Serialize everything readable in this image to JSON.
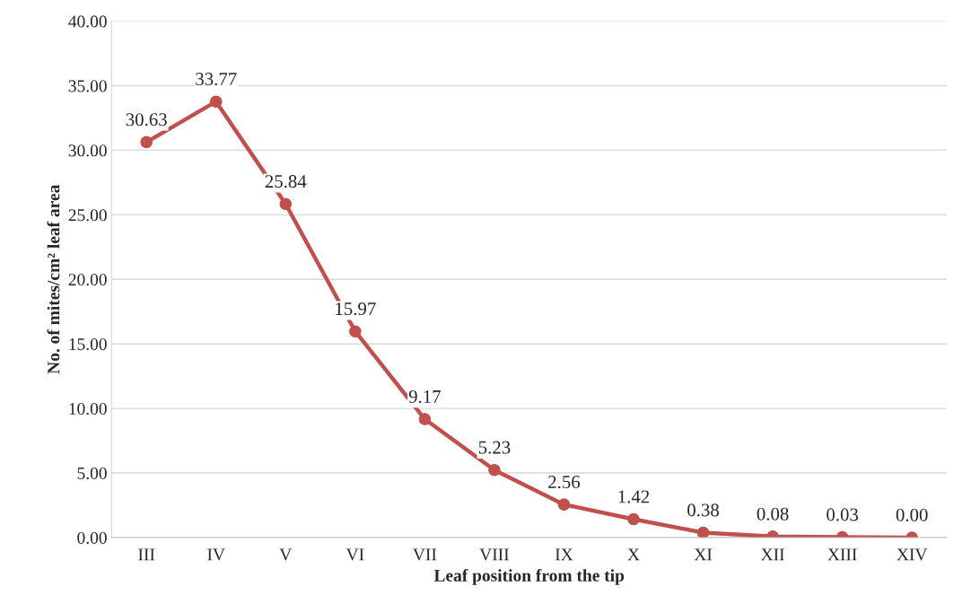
{
  "chart_data": {
    "type": "line",
    "xlabel": "Leaf position from the tip",
    "ylabel": "No. of mites/cm² leaf area",
    "categories": [
      "III",
      "IV",
      "V",
      "VI",
      "VII",
      "VIII",
      "IX",
      "X",
      "XI",
      "XII",
      "XIII",
      "XIV"
    ],
    "series": [
      {
        "color": "#c0504d",
        "values": [
          30.63,
          33.77,
          25.84,
          15.97,
          9.17,
          5.23,
          2.56,
          1.42,
          0.38,
          0.08,
          0.03,
          0.0
        ],
        "value_labels": [
          "30.63",
          "33.77",
          "25.84",
          "15.97",
          "9.17",
          "5.23",
          "2.56",
          "1.42",
          "0.38",
          "0.08",
          "0.03",
          "0.00"
        ]
      }
    ],
    "ylim": [
      0,
      40
    ],
    "yticks": [
      {
        "value": 0,
        "label": "0.00"
      },
      {
        "value": 5,
        "label": "5.00"
      },
      {
        "value": 10,
        "label": "10.00"
      },
      {
        "value": 15,
        "label": "15.00"
      },
      {
        "value": 20,
        "label": "20.00"
      },
      {
        "value": 25,
        "label": "25.00"
      },
      {
        "value": 30,
        "label": "30.00"
      },
      {
        "value": 35,
        "label": "35.00"
      },
      {
        "value": 40,
        "label": "40.00"
      }
    ],
    "grid": "y",
    "marker": "circle",
    "line_style": "solid",
    "legend": false
  }
}
